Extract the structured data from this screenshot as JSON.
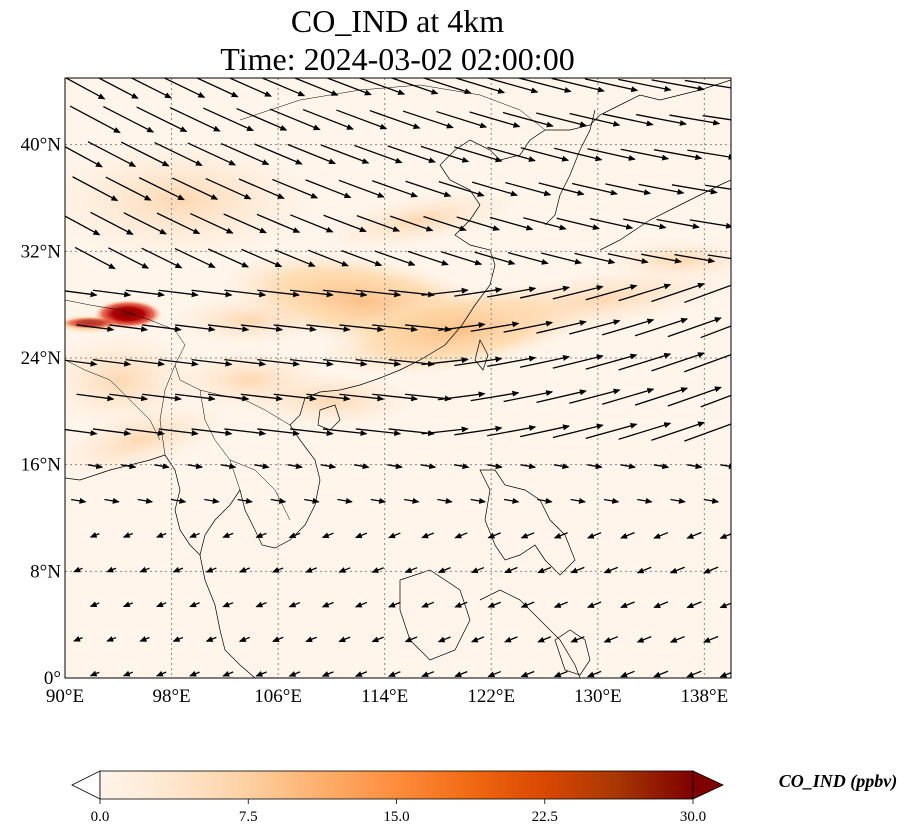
{
  "title": "CO_IND at 4km",
  "subtitle": "Time: 2024-03-02 02:00:00",
  "map": {
    "lon_range": [
      90,
      140
    ],
    "lat_range": [
      0,
      45
    ],
    "lon_ticks": [
      90,
      98,
      106,
      114,
      122,
      130,
      138
    ],
    "lat_ticks": [
      0,
      8,
      16,
      24,
      32,
      40
    ],
    "lon_tick_labels": [
      "90°E",
      "98°E",
      "106°E",
      "114°E",
      "122°E",
      "130°E",
      "138°E"
    ],
    "lat_tick_labels": [
      "0°",
      "8°N",
      "16°N",
      "24°N",
      "32°N",
      "40°N"
    ],
    "gridlines": "dotted",
    "plume_colors": {
      "low": "#fff5eb",
      "mid": "#fdbe85",
      "high": "#d94701",
      "max": "#7f0000"
    }
  },
  "colorbar": {
    "label": "CO_IND (ppbv)",
    "min": 0.0,
    "max": 30.0,
    "ticks": [
      0.0,
      7.5,
      15.0,
      22.5,
      30.0
    ],
    "tick_labels": [
      "0.0",
      "7.5",
      "15.0",
      "22.5",
      "30.0"
    ],
    "colormap": "OrRd",
    "stops": [
      "#fff5eb",
      "#fee6ce",
      "#fdd0a2",
      "#fdae6b",
      "#fd8d3c",
      "#f16913",
      "#d94801",
      "#a63603",
      "#7f0000"
    ],
    "extend": "both"
  }
}
